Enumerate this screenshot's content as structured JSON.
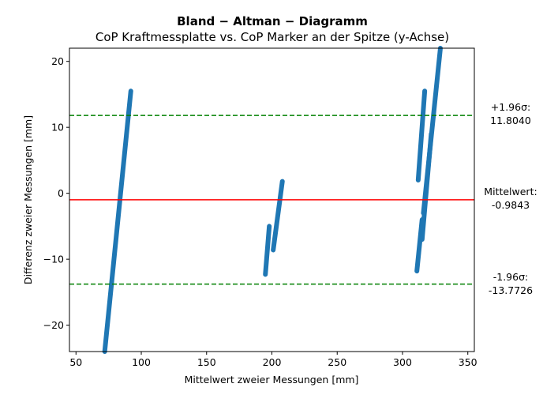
{
  "chart_data": {
    "type": "scatter",
    "title": "Bland − Altman − Diagramm",
    "subtitle": "CoP Kraftmessplatte vs. CoP Marker an der Spitze (y-Achse)",
    "xlabel": "Mittelwert zweier Messungen [mm]",
    "ylabel": "Differenz zweier Messungen [mm]",
    "xlim": [
      45,
      355
    ],
    "ylim": [
      -24,
      22
    ],
    "xticks": [
      50,
      100,
      150,
      200,
      250,
      300,
      350
    ],
    "yticks": [
      -20,
      -10,
      0,
      10,
      20
    ],
    "xtick_labels": [
      "50",
      "100",
      "150",
      "200",
      "250",
      "300",
      "350"
    ],
    "ytick_labels": [
      "−20",
      "−10",
      "0",
      "10",
      "20"
    ],
    "point_color": "#1f77b4",
    "mean_line": {
      "value": -0.9843,
      "color": "#ff0000",
      "label_line1": "Mittelwert:",
      "label_line2": "-0.9843"
    },
    "upper_loa": {
      "value": 11.804,
      "color": "#008000",
      "label_line1": "+1.96σ:",
      "label_line2": "11.8040"
    },
    "lower_loa": {
      "value": -13.7726,
      "color": "#008000",
      "label_line1": "-1.96σ:",
      "label_line2": "-13.7726"
    },
    "clusters": [
      {
        "name": "",
        "segments": [
          [
            72,
            -24,
            92,
            15.5
          ]
        ]
      },
      {
        "name": "",
        "segments": [
          [
            195,
            -12.3,
            198,
            -5
          ],
          [
            201,
            -8.6,
            208,
            1.8
          ]
        ]
      },
      {
        "name": "",
        "segments": [
          [
            311,
            -11.8,
            315,
            -4
          ],
          [
            312,
            2,
            317,
            15.5
          ],
          [
            315,
            -7,
            322,
            9
          ],
          [
            316,
            -3,
            329,
            22
          ]
        ]
      }
    ]
  }
}
